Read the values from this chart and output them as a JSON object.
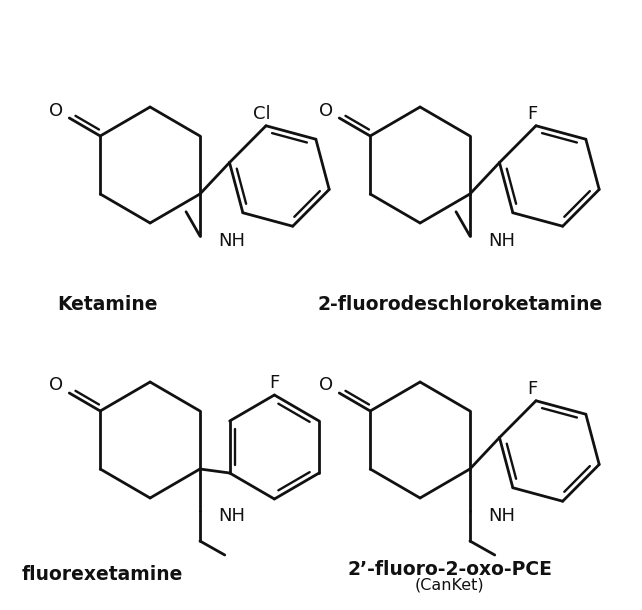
{
  "bg_color": "#ffffff",
  "line_color": "#111111",
  "text_color": "#111111",
  "lw": 2.0,
  "labels": {
    "ketamine": "Ketamine",
    "fdck": "2-fluorodeschloroketamine",
    "fluorexetamine": "fluorexetamine",
    "canket": "2’-fluoro-2-oxo-PCE",
    "canket_sub": "(CanKet)"
  },
  "label_fontsize": 13.5,
  "sub_fontsize": 11.5
}
